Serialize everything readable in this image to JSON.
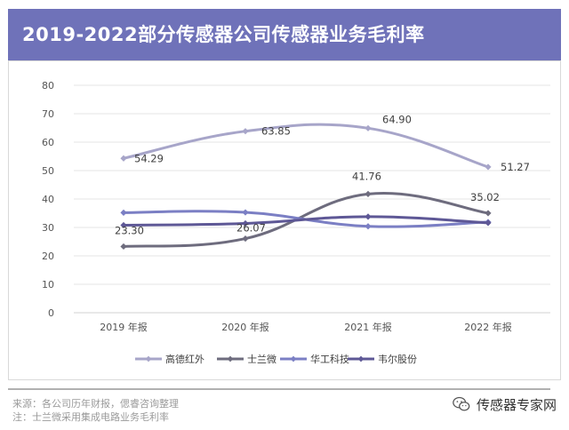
{
  "header": {
    "title": "2019-2022部分传感器公司传感器业务毛利率"
  },
  "chart_data": {
    "type": "line",
    "title": "2019-2022部分传感器公司传感器业务毛利率",
    "categories": [
      "2019 年报",
      "2020 年报",
      "2021 年报",
      "2022 年报"
    ],
    "ylim": [
      0,
      80
    ],
    "yticks": [
      "0",
      "10",
      "20",
      "30",
      "40",
      "50",
      "60",
      "70",
      "80"
    ],
    "grid": true,
    "legend_position": "bottom",
    "series": [
      {
        "name": "高德红外",
        "values": [
          54.29,
          63.85,
          64.9,
          51.27
        ],
        "color": "#a7a5c9",
        "labels": [
          "54.29",
          "63.85",
          "64.90",
          "51.27"
        ]
      },
      {
        "name": "士兰微",
        "values": [
          23.3,
          26.07,
          41.76,
          35.02
        ],
        "color": "#6e6c7e",
        "labels": [
          "23.30",
          "26.07",
          "41.76",
          "35.02"
        ]
      },
      {
        "name": "华工科技",
        "values": [
          35.2,
          35.3,
          30.4,
          31.9
        ],
        "color": "#7b7fc4",
        "labels": [
          "",
          "",
          "",
          ""
        ]
      },
      {
        "name": "韦尔股份",
        "values": [
          30.8,
          31.4,
          33.8,
          31.6
        ],
        "color": "#5e5896",
        "labels": [
          "",
          "",
          "",
          ""
        ]
      }
    ]
  },
  "footer": {
    "source": "来源：各公司历年财报，偲睿咨询整理",
    "note": "注：士兰微采用集成电路业务毛利率",
    "brand": "传感器专家网"
  }
}
